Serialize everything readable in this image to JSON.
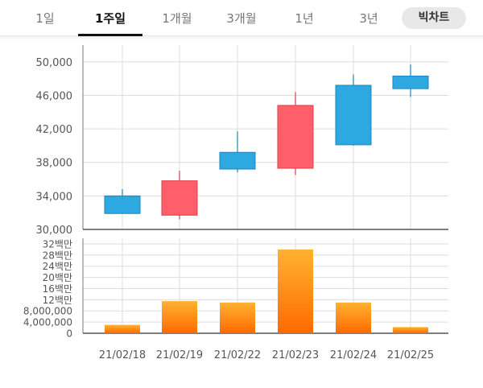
{
  "tabs": [
    {
      "label": "1일",
      "active": false
    },
    {
      "label": "1주일",
      "active": true
    },
    {
      "label": "1개월",
      "active": false
    },
    {
      "label": "3개월",
      "active": false
    },
    {
      "label": "1년",
      "active": false
    },
    {
      "label": "3년",
      "active": false
    }
  ],
  "big_chart_label": "빅차트",
  "colors": {
    "up": "#ff5e6a",
    "down": "#2ea8e0",
    "volume_top": "#ffb230",
    "volume_bottom": "#ff6a00",
    "grid": "#dddddd"
  },
  "chart_data": [
    {
      "type": "candlestick",
      "categories": [
        "21/02/18",
        "21/02/19",
        "21/02/22",
        "21/02/23",
        "21/02/24",
        "21/02/25"
      ],
      "ohlc": [
        {
          "open": 34000,
          "high": 34800,
          "low": 31900,
          "close": 31900,
          "direction": "down"
        },
        {
          "open": 31700,
          "high": 37000,
          "low": 31200,
          "close": 35800,
          "direction": "up"
        },
        {
          "open": 39200,
          "high": 41700,
          "low": 36800,
          "close": 37200,
          "direction": "down"
        },
        {
          "open": 37300,
          "high": 46400,
          "low": 36500,
          "close": 44800,
          "direction": "up"
        },
        {
          "open": 47200,
          "high": 48500,
          "low": 40000,
          "close": 40100,
          "direction": "down"
        },
        {
          "open": 48300,
          "high": 49700,
          "low": 45800,
          "close": 46800,
          "direction": "down"
        }
      ],
      "ylim": [
        30000,
        52000
      ],
      "ticks": [
        "30,000",
        "34,000",
        "38,000",
        "42,000",
        "46,000",
        "50,000"
      ],
      "grid": true
    },
    {
      "type": "bar",
      "categories": [
        "21/02/18",
        "21/02/19",
        "21/02/22",
        "21/02/23",
        "21/02/24",
        "21/02/25"
      ],
      "values": [
        3000000,
        11500000,
        11000000,
        30000000,
        11000000,
        2200000
      ],
      "ylim": [
        0,
        34000000
      ],
      "ticks": [
        "0",
        "4,000,000",
        "8,000,000",
        "12백만",
        "16백만",
        "20백만",
        "24백만",
        "28백만",
        "32백만"
      ],
      "grid": true
    }
  ]
}
